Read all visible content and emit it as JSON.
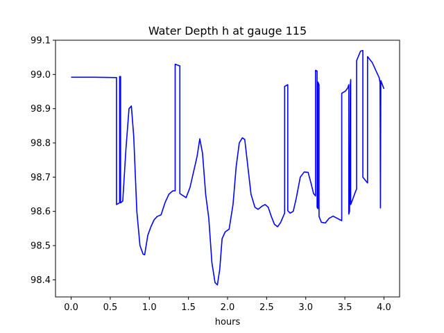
{
  "chart_data": {
    "type": "line",
    "title": "Water Depth h at gauge 115",
    "xlabel": "hours",
    "ylabel": "",
    "xlim": [
      -0.2,
      4.2
    ],
    "ylim": [
      98.35,
      99.1
    ],
    "xticks": [
      0.0,
      0.5,
      1.0,
      1.5,
      2.0,
      2.5,
      3.0,
      3.5,
      4.0
    ],
    "xtick_labels": [
      "0.0",
      "0.5",
      "1.0",
      "1.5",
      "2.0",
      "2.5",
      "3.0",
      "3.5",
      "4.0"
    ],
    "yticks": [
      98.4,
      98.5,
      98.6,
      98.7,
      98.8,
      98.9,
      99.0,
      99.1
    ],
    "ytick_labels": [
      "98.4",
      "98.5",
      "98.6",
      "98.7",
      "98.8",
      "98.9",
      "99.0",
      "99.1"
    ],
    "grid": false,
    "legend": "none",
    "series": [
      {
        "color": "#0000ff",
        "x": [
          0.0,
          0.3,
          0.58,
          0.58,
          0.62,
          0.62,
          0.632,
          0.632,
          0.66,
          0.7,
          0.74,
          0.77,
          0.8,
          0.84,
          0.88,
          0.92,
          0.94,
          0.98,
          1.02,
          1.06,
          1.1,
          1.15,
          1.2,
          1.25,
          1.3,
          1.33,
          1.33,
          1.39,
          1.39,
          1.47,
          1.52,
          1.57,
          1.61,
          1.645,
          1.68,
          1.72,
          1.76,
          1.8,
          1.84,
          1.87,
          1.9,
          1.93,
          1.97,
          2.02,
          2.07,
          2.11,
          2.15,
          2.19,
          2.22,
          2.26,
          2.3,
          2.35,
          2.39,
          2.44,
          2.48,
          2.52,
          2.56,
          2.6,
          2.64,
          2.68,
          2.73,
          2.73,
          2.77,
          2.77,
          2.8,
          2.84,
          2.88,
          2.93,
          2.98,
          3.03,
          3.07,
          3.1,
          3.125,
          3.125,
          3.145,
          3.145,
          3.155,
          3.155,
          3.17,
          3.17,
          3.2,
          3.25,
          3.3,
          3.35,
          3.4,
          3.45,
          3.46,
          3.46,
          3.51,
          3.54,
          3.55,
          3.55,
          3.56,
          3.57,
          3.575,
          3.575,
          3.6,
          3.64,
          3.65,
          3.65,
          3.7,
          3.73,
          3.73,
          3.79,
          3.79,
          3.85,
          3.9,
          3.94,
          3.95,
          3.955,
          3.955,
          3.96,
          4.0
        ],
        "y": [
          98.992,
          98.992,
          98.991,
          98.62,
          98.625,
          98.994,
          98.994,
          98.625,
          98.63,
          98.78,
          98.9,
          98.908,
          98.82,
          98.6,
          98.5,
          98.475,
          98.473,
          98.53,
          98.555,
          98.575,
          98.585,
          98.59,
          98.625,
          98.65,
          98.66,
          98.66,
          99.03,
          99.025,
          98.652,
          98.64,
          98.67,
          98.72,
          98.76,
          98.812,
          98.77,
          98.65,
          98.58,
          98.45,
          98.392,
          98.385,
          98.43,
          98.52,
          98.54,
          98.548,
          98.62,
          98.73,
          98.8,
          98.815,
          98.81,
          98.73,
          98.65,
          98.612,
          98.606,
          98.615,
          98.62,
          98.612,
          98.585,
          98.562,
          98.555,
          98.568,
          98.595,
          98.965,
          98.97,
          98.602,
          98.595,
          98.6,
          98.64,
          98.7,
          98.715,
          98.714,
          98.68,
          98.652,
          98.645,
          99.012,
          99.01,
          98.612,
          98.608,
          98.978,
          98.97,
          98.585,
          98.568,
          98.566,
          98.58,
          98.586,
          98.58,
          98.574,
          98.573,
          98.945,
          98.952,
          98.962,
          98.97,
          98.592,
          98.6,
          98.97,
          98.985,
          98.62,
          98.635,
          98.66,
          98.665,
          99.04,
          99.068,
          99.07,
          98.7,
          98.683,
          99.052,
          99.035,
          99.01,
          98.99,
          98.975,
          98.614,
          98.61,
          98.982,
          98.958
        ]
      }
    ]
  }
}
